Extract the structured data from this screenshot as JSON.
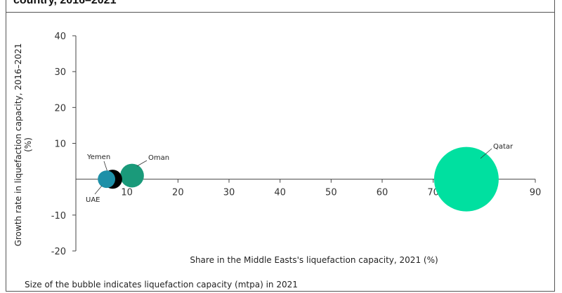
{
  "title": "country, 2016–2021",
  "note": "Size of the bubble  indicates liquefaction capacity (mtpa) in 2021",
  "chart_data": {
    "type": "bubble",
    "xlabel": "Share in the Middle Easts's liquefaction capacity, 2021 (%)",
    "ylabel_lines": [
      "Growth rate in liquefaction capacity, 2016–2021",
      "(%)"
    ],
    "xlim": [
      0,
      90
    ],
    "ylim": [
      -20,
      40
    ],
    "x_ticks": [
      "10",
      "20",
      "30",
      "40",
      "50",
      "60",
      "70",
      "80",
      "90"
    ],
    "y_ticks": [
      "40",
      "30",
      "20",
      "10",
      "-10",
      "-20"
    ],
    "grid": false,
    "legend": "none",
    "series": [
      {
        "label": "Qatar",
        "x": 76.5,
        "y": 0,
        "size": 77,
        "color": "#00e0a0"
      },
      {
        "label": "Oman",
        "x": 11,
        "y": 1,
        "size": 10.4,
        "color": "#1a9a7a"
      },
      {
        "label": "Yemen",
        "x": 7.2,
        "y": 0,
        "size": 6.7,
        "color": "#000000"
      },
      {
        "label": "UAE",
        "x": 6,
        "y": 0,
        "size": 5.6,
        "color": "#1e90a8"
      }
    ]
  }
}
